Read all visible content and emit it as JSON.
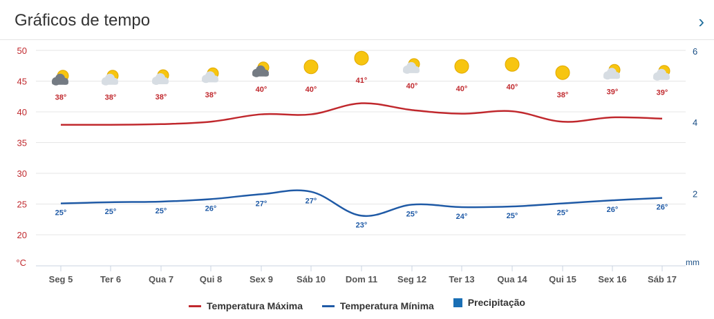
{
  "header": {
    "title": "Gráficos de tempo"
  },
  "colors": {
    "max": "#c0282d",
    "min": "#1f5aa6",
    "precip": "#1a6fb5",
    "sun": "#f7c510",
    "cloud": "#d7dde3",
    "dark_cloud": "#747b83"
  },
  "chart_data": {
    "type": "line",
    "categories": [
      "Seg 5",
      "Ter 6",
      "Qua 7",
      "Qui 8",
      "Sex 9",
      "Sáb 10",
      "Dom 11",
      "Seg 12",
      "Ter 13",
      "Qua 14",
      "Qui 15",
      "Sex 16",
      "Sáb 17"
    ],
    "series": [
      {
        "name": "Temperatura Máxima",
        "values": [
          37.9,
          37.9,
          38.0,
          38.4,
          39.6,
          39.6,
          41.4,
          40.3,
          39.7,
          40.1,
          38.4,
          39.1,
          38.9
        ],
        "labels": [
          "38°",
          "38°",
          "38°",
          "38°",
          "40°",
          "40°",
          "41°",
          "40°",
          "40°",
          "40°",
          "38°",
          "39°",
          "39°"
        ]
      },
      {
        "name": "Temperatura Mínima",
        "values": [
          25.1,
          25.3,
          25.4,
          25.8,
          26.6,
          27.0,
          23.1,
          24.9,
          24.5,
          24.6,
          25.1,
          25.6,
          26.0
        ],
        "labels": [
          "25°",
          "25°",
          "25°",
          "26°",
          "27°",
          "27°",
          "23°",
          "25°",
          "24°",
          "25°",
          "25°",
          "26°",
          "26°"
        ]
      }
    ],
    "precipitation": {
      "name": "Precipitação",
      "values": [
        0,
        0,
        0,
        0,
        0,
        0,
        0,
        0,
        0,
        0,
        0,
        0,
        0
      ]
    },
    "icons": [
      "partly-cloudy-dark",
      "partly-cloudy",
      "partly-cloudy",
      "partly-cloudy",
      "partly-cloudy-dark",
      "sunny",
      "sunny",
      "partly-cloudy",
      "sunny",
      "sunny",
      "sunny",
      "partly-cloudy",
      "partly-cloudy"
    ],
    "y_left": {
      "ticks": [
        50,
        45,
        40,
        35,
        30,
        25,
        20
      ],
      "unit": "°C",
      "range": [
        17,
        50
      ]
    },
    "y_right": {
      "ticks": [
        6,
        4,
        2
      ],
      "unit": "mm",
      "range": [
        0,
        6
      ]
    },
    "grid": true,
    "legend_position": "bottom-center"
  },
  "legend": {
    "max": "Temperatura Máxima",
    "min": "Temperatura Mínima",
    "precip": "Precipitação"
  }
}
